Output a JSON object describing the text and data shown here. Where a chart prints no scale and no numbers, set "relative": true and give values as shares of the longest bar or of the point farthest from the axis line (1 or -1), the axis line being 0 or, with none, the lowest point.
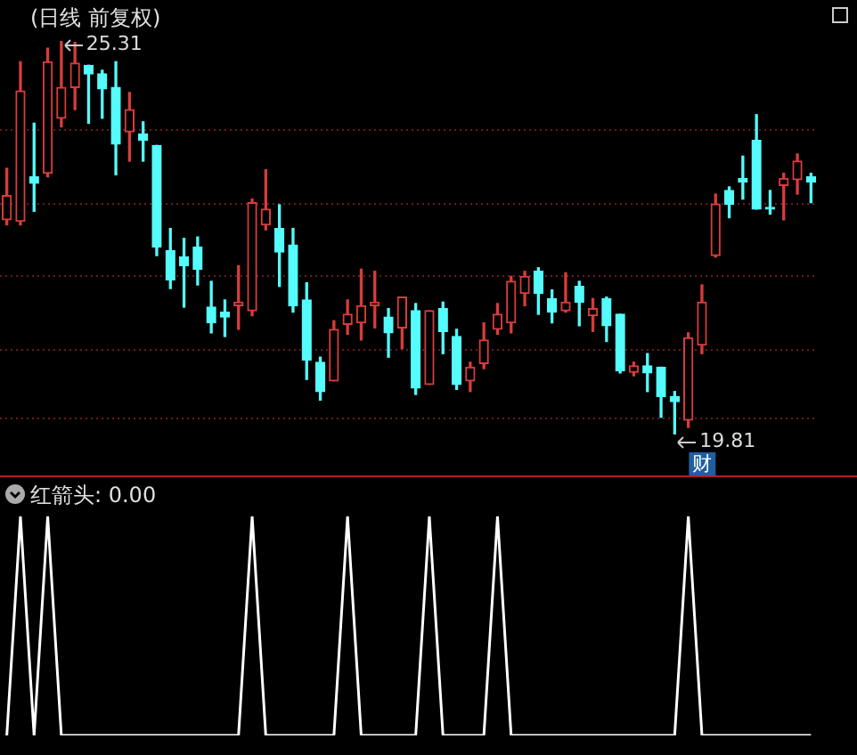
{
  "chart_data": [
    {
      "type": "candlestick",
      "title": "(日线 前复权)",
      "categories": [
        null,
        null,
        null,
        null,
        null,
        null,
        null,
        null,
        null,
        null,
        null,
        null,
        null,
        null,
        null,
        null,
        null,
        null,
        null,
        null,
        null,
        null,
        null,
        null,
        null,
        null,
        null,
        null,
        null,
        null,
        null,
        null,
        null,
        null,
        null,
        null,
        null,
        null,
        null,
        null,
        null,
        null,
        null,
        null,
        null,
        null,
        null,
        null,
        null,
        null,
        null,
        null,
        null,
        null,
        null,
        null,
        null,
        null,
        null,
        null
      ],
      "ohlc": [
        [
          22.81,
          23.53,
          22.74,
          23.15
        ],
        [
          22.79,
          25.02,
          22.74,
          24.61
        ],
        [
          23.41,
          24.16,
          22.93,
          23.32
        ],
        [
          23.46,
          25.21,
          23.41,
          25.02
        ],
        [
          24.23,
          25.31,
          24.11,
          24.66
        ],
        [
          24.66,
          25.29,
          24.35,
          25.0
        ],
        [
          24.97,
          24.97,
          24.16,
          24.85
        ],
        [
          24.85,
          24.9,
          24.23,
          24.64
        ],
        [
          24.66,
          25.02,
          23.44,
          23.87
        ],
        [
          24.04,
          24.59,
          23.63,
          24.35
        ],
        [
          24.01,
          24.18,
          23.63,
          23.92
        ],
        [
          23.85,
          23.85,
          22.31,
          22.43
        ],
        [
          22.38,
          22.69,
          21.85,
          21.97
        ],
        [
          22.29,
          22.55,
          21.59,
          22.17
        ],
        [
          22.43,
          22.57,
          21.9,
          22.12
        ],
        [
          21.59,
          21.95,
          21.23,
          21.37
        ],
        [
          21.52,
          21.69,
          21.18,
          21.45
        ],
        [
          21.61,
          22.17,
          21.28,
          21.66
        ],
        [
          21.54,
          23.1,
          21.47,
          23.05
        ],
        [
          22.74,
          23.51,
          22.67,
          22.96
        ],
        [
          22.69,
          23.02,
          21.88,
          22.36
        ],
        [
          22.46,
          22.69,
          21.52,
          21.61
        ],
        [
          21.69,
          21.93,
          20.58,
          20.85
        ],
        [
          20.82,
          20.89,
          20.29,
          20.41
        ],
        [
          20.56,
          21.4,
          20.56,
          21.28
        ],
        [
          21.35,
          21.69,
          21.21,
          21.49
        ],
        [
          21.37,
          22.12,
          21.13,
          21.61
        ],
        [
          21.61,
          22.09,
          21.3,
          21.66
        ],
        [
          21.45,
          21.57,
          20.89,
          21.23
        ],
        [
          21.3,
          21.73,
          21.01,
          21.73
        ],
        [
          21.54,
          21.64,
          20.37,
          20.46
        ],
        [
          20.51,
          21.54,
          20.51,
          21.54
        ],
        [
          21.57,
          21.66,
          20.94,
          21.25
        ],
        [
          21.18,
          21.28,
          20.44,
          20.51
        ],
        [
          20.56,
          20.82,
          20.41,
          20.75
        ],
        [
          20.8,
          21.37,
          20.73,
          21.13
        ],
        [
          21.28,
          21.64,
          21.21,
          21.49
        ],
        [
          21.37,
          22.02,
          21.23,
          21.95
        ],
        [
          21.78,
          22.09,
          21.61,
          22.02
        ],
        [
          22.09,
          22.14,
          21.49,
          21.78
        ],
        [
          21.71,
          21.83,
          21.37,
          21.52
        ],
        [
          21.54,
          22.07,
          21.52,
          21.66
        ],
        [
          21.88,
          21.95,
          21.33,
          21.66
        ],
        [
          21.47,
          21.71,
          21.25,
          21.57
        ],
        [
          21.71,
          21.73,
          21.11,
          21.33
        ],
        [
          21.49,
          21.49,
          20.67,
          20.7
        ],
        [
          20.68,
          20.82,
          20.63,
          20.77
        ],
        [
          20.77,
          20.94,
          20.41,
          20.67
        ],
        [
          20.75,
          20.75,
          20.05,
          20.34
        ],
        [
          20.34,
          20.41,
          19.81,
          20.27
        ],
        [
          20.01,
          21.23,
          19.91,
          21.16
        ],
        [
          21.06,
          21.9,
          20.94,
          21.66
        ],
        [
          22.31,
          23.17,
          22.29,
          23.03
        ],
        [
          23.22,
          23.27,
          22.84,
          23.03
        ],
        [
          23.39,
          23.7,
          23.1,
          23.34
        ],
        [
          23.92,
          24.28,
          22.96,
          22.96
        ],
        [
          22.98,
          23.22,
          22.89,
          22.96
        ],
        [
          23.29,
          23.46,
          22.81,
          23.39
        ],
        [
          23.37,
          23.73,
          23.17,
          23.63
        ],
        [
          23.41,
          23.46,
          23.05,
          23.34
        ]
      ],
      "colors": [
        "#d83c3c",
        "#d83c3c",
        "#54fcfc",
        "#d83c3c",
        "#d83c3c",
        "#d83c3c",
        "#54fcfc",
        "#54fcfc",
        "#54fcfc",
        "#d83c3c",
        "#54fcfc",
        "#54fcfc",
        "#54fcfc",
        "#54fcfc",
        "#54fcfc",
        "#54fcfc",
        "#54fcfc",
        "#d83c3c",
        "#d83c3c",
        "#d83c3c",
        "#54fcfc",
        "#54fcfc",
        "#54fcfc",
        "#54fcfc",
        "#d83c3c",
        "#d83c3c",
        "#d83c3c",
        "#d83c3c",
        "#54fcfc",
        "#d83c3c",
        "#54fcfc",
        "#d83c3c",
        "#54fcfc",
        "#54fcfc",
        "#d83c3c",
        "#d83c3c",
        "#d83c3c",
        "#d83c3c",
        "#d83c3c",
        "#54fcfc",
        "#54fcfc",
        "#d83c3c",
        "#54fcfc",
        "#d83c3c",
        "#54fcfc",
        "#54fcfc",
        "#d83c3c",
        "#54fcfc",
        "#54fcfc",
        "#54fcfc",
        "#d83c3c",
        "#d83c3c",
        "#d83c3c",
        "#54fcfc",
        "#54fcfc",
        "#54fcfc",
        "#54fcfc",
        "#d83c3c",
        "#d83c3c",
        "#54fcfc"
      ],
      "yticks": [
        {
          "value": 20.03,
          "label": null
        },
        {
          "value": 20.99,
          "label": null
        },
        {
          "value": 22.02,
          "label": null
        },
        {
          "value": 23.03,
          "label": null
        },
        {
          "value": 24.06,
          "label": null
        }
      ],
      "grid": "y",
      "annotations": [
        "25.31",
        "19.81",
        "财"
      ]
    },
    {
      "type": "line",
      "title": "红箭头: 0.00",
      "categories": [
        null,
        null,
        null,
        null,
        null,
        null,
        null,
        null,
        null,
        null,
        null,
        null,
        null,
        null,
        null,
        null,
        null,
        null,
        null,
        null,
        null,
        null,
        null,
        null,
        null,
        null,
        null,
        null,
        null,
        null,
        null,
        null,
        null,
        null,
        null,
        null,
        null,
        null,
        null,
        null,
        null,
        null,
        null,
        null,
        null,
        null,
        null,
        null,
        null,
        null,
        null,
        null,
        null,
        null,
        null,
        null,
        null,
        null,
        null,
        null
      ],
      "series": [
        {
          "color": "#ffffff",
          "values": [
            0,
            1,
            0,
            1,
            0,
            0,
            0,
            0,
            0,
            0,
            0,
            0,
            0,
            0,
            0,
            0,
            0,
            0,
            1,
            0,
            0,
            0,
            0,
            0,
            0,
            1,
            0,
            0,
            0,
            0,
            0,
            1,
            0,
            0,
            0,
            0,
            1,
            0,
            0,
            0,
            0,
            0,
            0,
            0,
            0,
            0,
            0,
            0,
            0,
            0,
            1,
            0,
            0,
            0,
            0,
            0,
            0,
            0,
            0,
            0
          ]
        }
      ],
      "relative": true,
      "marker": "none"
    }
  ]
}
